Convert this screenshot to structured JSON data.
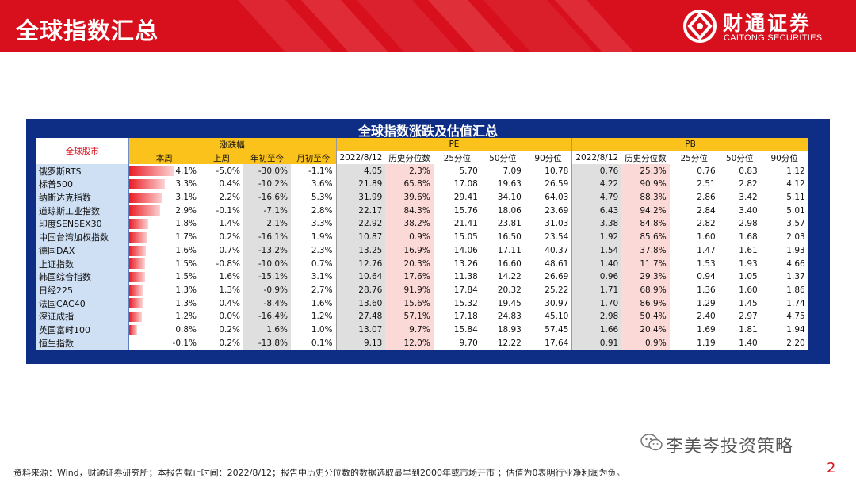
{
  "header": {
    "title": "全球指数汇总",
    "brand_cn": "财通证券",
    "brand_en": "CAITONG SECURITIES"
  },
  "table": {
    "title": "全球指数涨跌及估值汇总",
    "region_label": "全球股市",
    "group_change": "涨跌幅",
    "group_pe": "PE",
    "group_pb": "PB",
    "change_cols": [
      "本周",
      "上周",
      "年初至今",
      "月初至今"
    ],
    "val_cols": [
      "2022/8/12",
      "历史分位数",
      "25分位",
      "50分位",
      "90分位"
    ],
    "rows": [
      {
        "name": "俄罗斯RTS",
        "wk": "4.1%",
        "wk_v": 4.1,
        "lw": "-5.0%",
        "ytd": "-30.0%",
        "mtd": "-1.1%",
        "pe": [
          "4.05",
          "2.3%",
          "5.70",
          "7.09",
          "10.78"
        ],
        "pb": [
          "0.76",
          "25.3%",
          "0.76",
          "0.83",
          "1.12"
        ]
      },
      {
        "name": "标普500",
        "wk": "3.3%",
        "wk_v": 3.3,
        "lw": "0.4%",
        "ytd": "-10.2%",
        "mtd": "3.6%",
        "pe": [
          "21.89",
          "65.8%",
          "17.08",
          "19.63",
          "26.59"
        ],
        "pb": [
          "4.22",
          "90.9%",
          "2.51",
          "2.82",
          "4.12"
        ]
      },
      {
        "name": "纳斯达克指数",
        "wk": "3.1%",
        "wk_v": 3.1,
        "lw": "2.2%",
        "ytd": "-16.6%",
        "mtd": "5.3%",
        "pe": [
          "31.99",
          "39.6%",
          "29.41",
          "34.10",
          "64.03"
        ],
        "pb": [
          "4.79",
          "88.3%",
          "2.86",
          "3.42",
          "5.11"
        ]
      },
      {
        "name": "道琼斯工业指数",
        "wk": "2.9%",
        "wk_v": 2.9,
        "lw": "-0.1%",
        "ytd": "-7.1%",
        "mtd": "2.8%",
        "pe": [
          "22.17",
          "84.3%",
          "15.76",
          "18.06",
          "23.69"
        ],
        "pb": [
          "6.43",
          "94.2%",
          "2.84",
          "3.40",
          "5.01"
        ]
      },
      {
        "name": "印度SENSEX30",
        "wk": "1.8%",
        "wk_v": 1.8,
        "lw": "1.4%",
        "ytd": "2.1%",
        "mtd": "3.3%",
        "pe": [
          "22.92",
          "38.2%",
          "21.41",
          "23.81",
          "31.03"
        ],
        "pb": [
          "3.38",
          "84.8%",
          "2.82",
          "2.98",
          "3.57"
        ]
      },
      {
        "name": "中国台湾加权指数",
        "wk": "1.7%",
        "wk_v": 1.7,
        "lw": "0.2%",
        "ytd": "-16.1%",
        "mtd": "1.9%",
        "pe": [
          "10.87",
          "0.9%",
          "15.05",
          "16.50",
          "23.54"
        ],
        "pb": [
          "1.92",
          "85.6%",
          "1.60",
          "1.68",
          "2.03"
        ]
      },
      {
        "name": "德国DAX",
        "wk": "1.6%",
        "wk_v": 1.6,
        "lw": "0.7%",
        "ytd": "-13.2%",
        "mtd": "2.3%",
        "pe": [
          "13.25",
          "16.9%",
          "14.06",
          "17.11",
          "40.37"
        ],
        "pb": [
          "1.54",
          "37.8%",
          "1.47",
          "1.61",
          "1.93"
        ]
      },
      {
        "name": "上证指数",
        "wk": "1.5%",
        "wk_v": 1.5,
        "lw": "-0.8%",
        "ytd": "-10.0%",
        "mtd": "0.7%",
        "pe": [
          "12.76",
          "20.3%",
          "13.26",
          "16.60",
          "48.61"
        ],
        "pb": [
          "1.40",
          "11.7%",
          "1.53",
          "1.93",
          "4.66"
        ]
      },
      {
        "name": "韩国综合指数",
        "wk": "1.5%",
        "wk_v": 1.5,
        "lw": "1.6%",
        "ytd": "-15.1%",
        "mtd": "3.1%",
        "pe": [
          "10.64",
          "17.6%",
          "11.38",
          "14.22",
          "26.69"
        ],
        "pb": [
          "0.96",
          "29.3%",
          "0.94",
          "1.05",
          "1.37"
        ]
      },
      {
        "name": "日经225",
        "wk": "1.3%",
        "wk_v": 1.3,
        "lw": "1.3%",
        "ytd": "-0.9%",
        "mtd": "2.7%",
        "pe": [
          "28.76",
          "91.9%",
          "17.84",
          "20.32",
          "25.22"
        ],
        "pb": [
          "1.71",
          "68.9%",
          "1.36",
          "1.60",
          "1.86"
        ]
      },
      {
        "name": "法国CAC40",
        "wk": "1.3%",
        "wk_v": 1.3,
        "lw": "0.4%",
        "ytd": "-8.4%",
        "mtd": "1.6%",
        "pe": [
          "13.60",
          "15.6%",
          "15.32",
          "19.45",
          "30.97"
        ],
        "pb": [
          "1.70",
          "86.9%",
          "1.29",
          "1.45",
          "1.74"
        ]
      },
      {
        "name": "深证成指",
        "wk": "1.2%",
        "wk_v": 1.2,
        "lw": "0.0%",
        "ytd": "-16.4%",
        "mtd": "1.2%",
        "pe": [
          "27.48",
          "57.1%",
          "17.18",
          "24.83",
          "45.10"
        ],
        "pb": [
          "2.98",
          "50.4%",
          "2.40",
          "2.97",
          "4.75"
        ]
      },
      {
        "name": "英国富时100",
        "wk": "0.8%",
        "wk_v": 0.8,
        "lw": "0.2%",
        "ytd": "1.6%",
        "mtd": "1.0%",
        "pe": [
          "13.07",
          "9.7%",
          "15.84",
          "18.93",
          "57.45"
        ],
        "pb": [
          "1.66",
          "20.4%",
          "1.69",
          "1.81",
          "1.94"
        ]
      },
      {
        "name": "恒生指数",
        "wk": "-0.1%",
        "wk_v": -0.1,
        "lw": "0.2%",
        "ytd": "-13.8%",
        "mtd": "0.1%",
        "pe": [
          "9.13",
          "12.0%",
          "9.70",
          "12.22",
          "17.64"
        ],
        "pb": [
          "0.91",
          "0.9%",
          "1.19",
          "1.40",
          "2.20"
        ]
      }
    ]
  },
  "watermark": "李美岑投资策略",
  "footer": "资料来源：Wind，财通证券研究所；本报告截止时间：2022/8/12；报告中历史分位数的数据选取最早到2000年或市场开市 ；估值为0表明行业净利润为负。",
  "page_number": "2",
  "colors": {
    "brand_red": "#d8101d",
    "panel_blue": "#0e2e86",
    "header_yellow": "#fac21a",
    "name_blue": "#cfe0f5",
    "percentile_pink": "#fbd9d7"
  }
}
